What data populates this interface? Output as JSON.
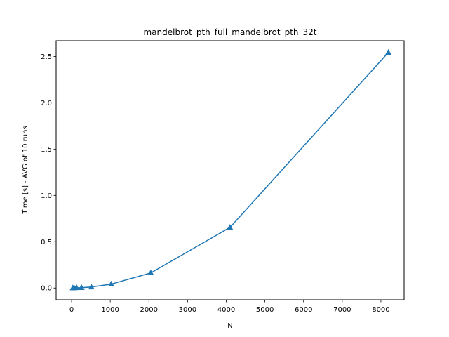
{
  "chart_data": {
    "type": "line",
    "title": "mandelbrot_pth_full_mandelbrot_pth_32t",
    "xlabel": "N",
    "ylabel": "Time [s] - AVG of 10 runs",
    "xlim": [
      -400,
      8600
    ],
    "ylim": [
      -0.127,
      2.67
    ],
    "xticks": [
      0,
      1000,
      2000,
      3000,
      4000,
      5000,
      6000,
      7000,
      8000
    ],
    "yticks": [
      0.0,
      0.5,
      1.0,
      1.5,
      2.0,
      2.5
    ],
    "xtick_labels": [
      "0",
      "1000",
      "2000",
      "3000",
      "4000",
      "5000",
      "6000",
      "7000",
      "8000"
    ],
    "ytick_labels": [
      "0.0",
      "0.5",
      "1.0",
      "1.5",
      "2.0",
      "2.5"
    ],
    "grid": false,
    "series": [
      {
        "color": "#1f77b4",
        "marker": "triangle-up",
        "x": [
          32,
          64,
          128,
          256,
          512,
          1024,
          2048,
          4096,
          8192
        ],
        "y": [
          0.001,
          0.002,
          0.003,
          0.004,
          0.011,
          0.042,
          0.163,
          0.654,
          2.543
        ]
      }
    ]
  }
}
